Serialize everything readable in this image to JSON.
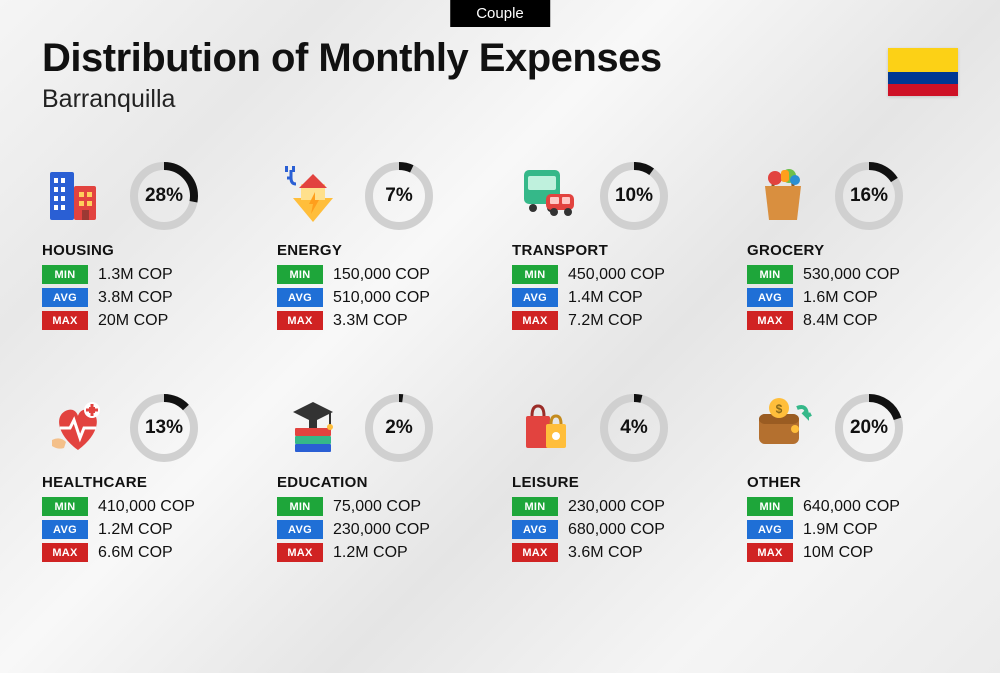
{
  "badge": "Couple",
  "title": "Distribution of Monthly Expenses",
  "subtitle": "Barranquilla",
  "flag_colors": [
    "#fcd116",
    "#003893",
    "#ce1126"
  ],
  "ring": {
    "track_color": "#d0d0d0",
    "progress_color": "#111111",
    "stroke_width": 8,
    "radius": 30
  },
  "tags": {
    "min": {
      "label": "MIN",
      "color": "#1ea63a"
    },
    "avg": {
      "label": "AVG",
      "color": "#1f6fd6"
    },
    "max": {
      "label": "MAX",
      "color": "#d02323"
    }
  },
  "categories": [
    {
      "name": "HOUSING",
      "percent": 28,
      "min": "1.3M COP",
      "avg": "3.8M COP",
      "max": "20M COP",
      "icon": "housing"
    },
    {
      "name": "ENERGY",
      "percent": 7,
      "min": "150,000 COP",
      "avg": "510,000 COP",
      "max": "3.3M COP",
      "icon": "energy"
    },
    {
      "name": "TRANSPORT",
      "percent": 10,
      "min": "450,000 COP",
      "avg": "1.4M COP",
      "max": "7.2M COP",
      "icon": "transport"
    },
    {
      "name": "GROCERY",
      "percent": 16,
      "min": "530,000 COP",
      "avg": "1.6M COP",
      "max": "8.4M COP",
      "icon": "grocery"
    },
    {
      "name": "HEALTHCARE",
      "percent": 13,
      "min": "410,000 COP",
      "avg": "1.2M COP",
      "max": "6.6M COP",
      "icon": "healthcare"
    },
    {
      "name": "EDUCATION",
      "percent": 2,
      "min": "75,000 COP",
      "avg": "230,000 COP",
      "max": "1.2M COP",
      "icon": "education"
    },
    {
      "name": "LEISURE",
      "percent": 4,
      "min": "230,000 COP",
      "avg": "680,000 COP",
      "max": "3.6M COP",
      "icon": "leisure"
    },
    {
      "name": "OTHER",
      "percent": 20,
      "min": "640,000 COP",
      "avg": "1.9M COP",
      "max": "10M COP",
      "icon": "other"
    }
  ]
}
